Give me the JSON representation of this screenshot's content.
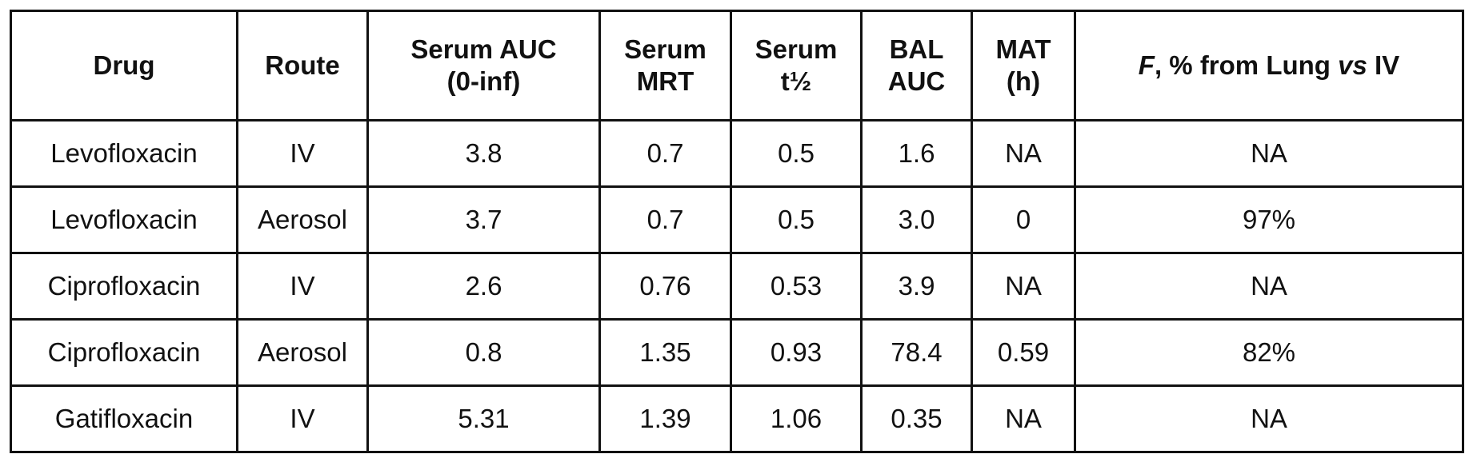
{
  "table": {
    "headers": [
      {
        "lines": [
          "Drug"
        ]
      },
      {
        "lines": [
          "Route"
        ]
      },
      {
        "lines": [
          "Serum AUC",
          "(0-inf)"
        ]
      },
      {
        "lines": [
          "Serum",
          "MRT"
        ]
      },
      {
        "lines": [
          "Serum",
          "t½"
        ]
      },
      {
        "lines": [
          "BAL",
          "AUC"
        ]
      },
      {
        "lines": [
          "MAT",
          "(h)"
        ]
      },
      {
        "parts": {
          "f_symbol": "F",
          "mid": ", % from Lung ",
          "vs": "vs",
          "end": " IV"
        }
      }
    ],
    "rows": [
      [
        "Levofloxacin",
        "IV",
        "3.8",
        "0.7",
        "0.5",
        "1.6",
        "NA",
        "NA"
      ],
      [
        "Levofloxacin",
        "Aerosol",
        "3.7",
        "0.7",
        "0.5",
        "3.0",
        "0",
        "97%"
      ],
      [
        "Ciprofloxacin",
        "IV",
        "2.6",
        "0.76",
        "0.53",
        "3.9",
        "NA",
        "NA"
      ],
      [
        "Ciprofloxacin",
        "Aerosol",
        "0.8",
        "1.35",
        "0.93",
        "78.4",
        "0.59",
        "82%"
      ],
      [
        "Gatifloxacin",
        "IV",
        "5.31",
        "1.39",
        "1.06",
        "0.35",
        "NA",
        "NA"
      ]
    ]
  }
}
